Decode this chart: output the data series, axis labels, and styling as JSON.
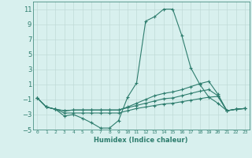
{
  "xlabel": "Humidex (Indice chaleur)",
  "x_values": [
    0,
    1,
    2,
    3,
    4,
    5,
    6,
    7,
    8,
    9,
    10,
    11,
    12,
    13,
    14,
    15,
    16,
    17,
    18,
    19,
    20,
    21,
    22,
    23
  ],
  "line1": [
    -0.8,
    -2.0,
    -2.3,
    -3.2,
    -3.0,
    -3.5,
    -4.1,
    -4.8,
    -4.8,
    -3.8,
    -0.7,
    1.2,
    9.4,
    10.0,
    11.0,
    11.0,
    7.5,
    3.2,
    1.0,
    -0.7,
    -1.5,
    -2.5,
    -2.3,
    -2.2
  ],
  "line2": [
    -0.8,
    -2.0,
    -2.3,
    -2.8,
    -2.8,
    -2.8,
    -2.8,
    -2.8,
    -2.8,
    -2.8,
    -2.5,
    -2.2,
    -2.0,
    -1.8,
    -1.6,
    -1.5,
    -1.3,
    -1.1,
    -0.9,
    -0.7,
    -0.6,
    -2.5,
    -2.3,
    -2.2
  ],
  "line3": [
    -0.8,
    -2.0,
    -2.3,
    -2.5,
    -2.4,
    -2.4,
    -2.4,
    -2.4,
    -2.4,
    -2.4,
    -2.1,
    -1.8,
    -1.5,
    -1.2,
    -0.9,
    -0.8,
    -0.5,
    -0.2,
    0.1,
    0.3,
    -0.5,
    -2.5,
    -2.3,
    -2.2
  ],
  "line4": [
    -0.8,
    -2.0,
    -2.3,
    -2.5,
    -2.4,
    -2.4,
    -2.4,
    -2.4,
    -2.4,
    -2.4,
    -2.0,
    -1.5,
    -1.0,
    -0.5,
    -0.2,
    0.0,
    0.3,
    0.7,
    1.1,
    1.4,
    -0.3,
    -2.5,
    -2.3,
    -2.2
  ],
  "line_color": "#2e7d6e",
  "bg_color": "#d8f0ee",
  "grid_color": "#c0dbd8",
  "ylim": [
    -5,
    12
  ],
  "yticks": [
    -5,
    -3,
    -1,
    1,
    3,
    5,
    7,
    9,
    11
  ],
  "xlim": [
    -0.5,
    23.5
  ]
}
